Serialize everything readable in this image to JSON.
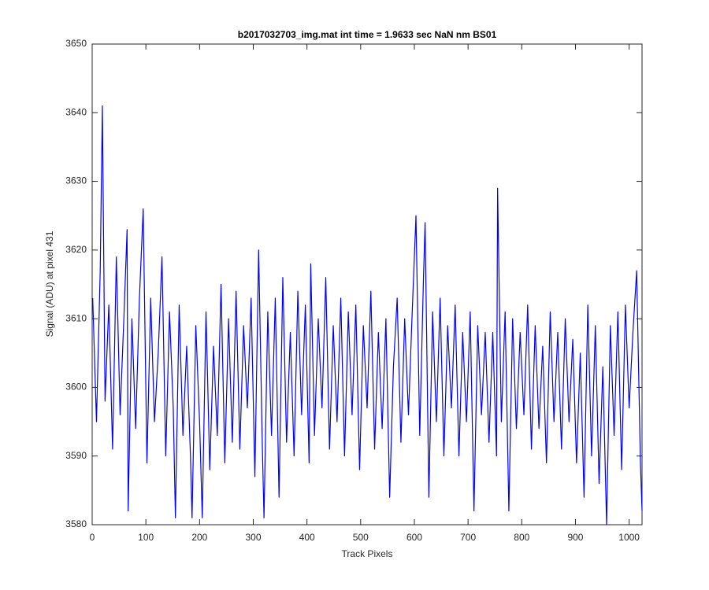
{
  "chart_data": {
    "type": "line",
    "title": "b2017032703_img.mat int time = 1.9633 sec  NaN nm BS01",
    "x_label": "Track Pixels",
    "y_label": "Signal (ADU) at pixel 431",
    "x": [
      1,
      8,
      15,
      19,
      24,
      31,
      38,
      45,
      52,
      59,
      65,
      67,
      74,
      81,
      88,
      95,
      102,
      109,
      116,
      123,
      130,
      137,
      144,
      151,
      155,
      162,
      169,
      176,
      183,
      186,
      193,
      200,
      205,
      212,
      219,
      226,
      233,
      240,
      247,
      254,
      261,
      268,
      275,
      282,
      289,
      296,
      303,
      310,
      317,
      320,
      327,
      334,
      341,
      348,
      355,
      362,
      369,
      376,
      383,
      390,
      397,
      404,
      407,
      414,
      421,
      428,
      435,
      442,
      449,
      456,
      463,
      470,
      477,
      484,
      491,
      498,
      505,
      512,
      519,
      526,
      533,
      540,
      547,
      554,
      561,
      568,
      575,
      582,
      589,
      596,
      603,
      610,
      617,
      620,
      627,
      634,
      641,
      648,
      655,
      662,
      669,
      676,
      683,
      690,
      697,
      704,
      711,
      718,
      725,
      732,
      739,
      746,
      753,
      755,
      762,
      769,
      776,
      783,
      790,
      797,
      804,
      811,
      818,
      825,
      832,
      839,
      846,
      853,
      860,
      867,
      874,
      881,
      888,
      895,
      902,
      909,
      916,
      923,
      930,
      937,
      944,
      951,
      958,
      965,
      972,
      979,
      986,
      993,
      1000,
      1007,
      1014,
      1021,
      1024
    ],
    "series": [
      {
        "color": "#0000ff",
        "values": [
          3613,
          3595,
          3617,
          3641,
          3598,
          3612,
          3591,
          3619,
          3596,
          3610,
          3623,
          3582,
          3610,
          3594,
          3613,
          3626,
          3589,
          3613,
          3595,
          3605,
          3619,
          3590,
          3611,
          3597,
          3581,
          3612,
          3593,
          3606,
          3590,
          3581,
          3609,
          3595,
          3581,
          3611,
          3588,
          3606,
          3593,
          3615,
          3589,
          3610,
          3592,
          3614,
          3591,
          3609,
          3597,
          3613,
          3587,
          3620,
          3591,
          3581,
          3611,
          3593,
          3613,
          3584,
          3616,
          3592,
          3608,
          3590,
          3614,
          3596,
          3612,
          3589,
          3618,
          3593,
          3610,
          3597,
          3616,
          3591,
          3609,
          3595,
          3613,
          3590,
          3611,
          3596,
          3612,
          3588,
          3609,
          3597,
          3614,
          3591,
          3608,
          3594,
          3610,
          3584,
          3603,
          3613,
          3592,
          3610,
          3596,
          3611,
          3625,
          3593,
          3616,
          3624,
          3584,
          3611,
          3595,
          3613,
          3590,
          3609,
          3597,
          3612,
          3590,
          3608,
          3595,
          3611,
          3582,
          3609,
          3596,
          3608,
          3592,
          3608,
          3590,
          3629,
          3595,
          3611,
          3582,
          3610,
          3594,
          3608,
          3596,
          3612,
          3591,
          3609,
          3594,
          3606,
          3589,
          3611,
          3595,
          3608,
          3591,
          3610,
          3595,
          3607,
          3589,
          3605,
          3584,
          3612,
          3590,
          3609,
          3586,
          3603,
          3580,
          3609,
          3593,
          3611,
          3588,
          3612,
          3597,
          3608,
          3617,
          3589,
          3582
        ]
      }
    ],
    "xlim": [
      0,
      1024
    ],
    "ylim": [
      3580,
      3650
    ],
    "xticks": [
      0,
      100,
      200,
      300,
      400,
      500,
      600,
      700,
      800,
      900,
      1000
    ],
    "yticks": [
      3580,
      3590,
      3600,
      3610,
      3620,
      3630,
      3640,
      3650
    ]
  }
}
